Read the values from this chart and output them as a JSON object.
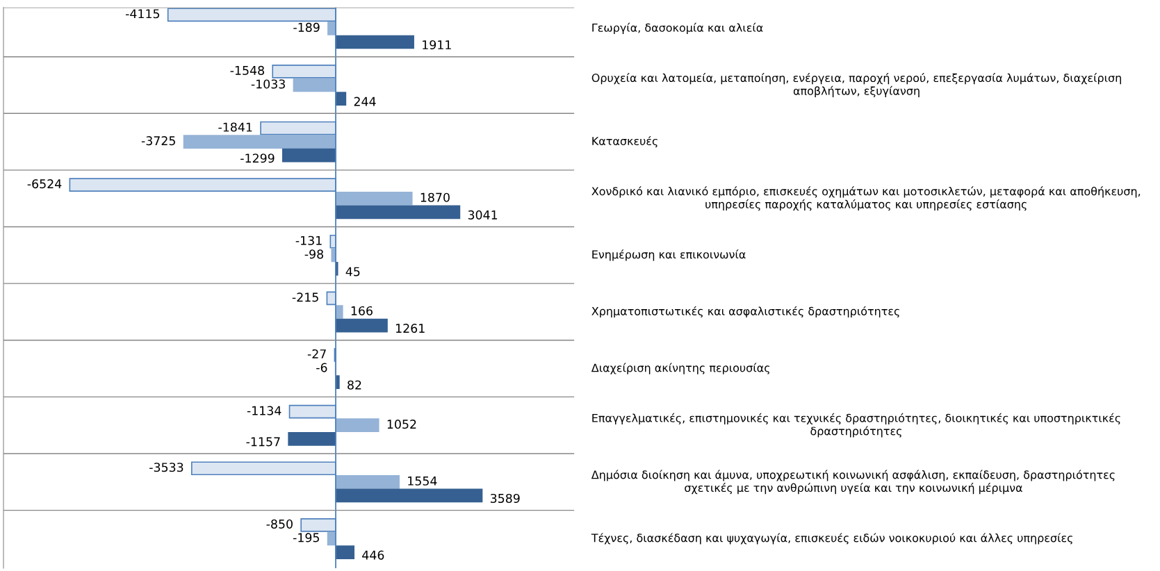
{
  "chart_data": {
    "type": "bar",
    "orientation": "horizontal",
    "data_labels": true,
    "grid": "y",
    "tick_labels": "y",
    "ref_lines": [
      {
        "axis": "x",
        "value": 0,
        "color": "#4f81bd"
      }
    ],
    "xlim": [
      -8150,
      5850
    ],
    "categories": [
      "Γεωργία, δασοκομία και αλιεία",
      "Ορυχεία και λατομεία, μεταποίηση, ενέργεια, παροχή νερού, επεξεργασία λυμάτων, διαχείριση αποβλήτων, εξυγίανση",
      "Κατασκευές",
      "Χονδρικό και λιανικό εμπόριο, επισκευές οχημάτων και μοτοσικλετών, μεταφορά και αποθήκευση, υπηρεσίες παροχής καταλύματος και υπηρεσίες εστίασης",
      "Ενημέρωση και επικοινωνία",
      "Χρηματοπιστωτικές και ασφαλιστικές δραστηριότητες",
      "Διαχείριση ακίνητης περιουσίας",
      "Επαγγελματικές, επιστημονικές και τεχνικές δραστηριότητες, διοικητικές και υποστηρικτικές δραστηριότητες",
      "Δημόσια διοίκηση και άμυνα, υποχρεωτική κοινωνική ασφάλιση, εκπαίδευση, δραστηριότητες σχετικές με την ανθρώπινη υγεία και την κοινωνική μέριμνα",
      "Τέχνες, διασκέδαση και ψυχαγωγία, επισκευές ειδών νοικοκυριού και άλλες υπηρεσίες"
    ],
    "series": [
      {
        "color": "#dce6f2",
        "values": [
          -4115,
          -1548,
          -1841,
          -6524,
          -131,
          -215,
          -27,
          -1134,
          -3533,
          -850
        ]
      },
      {
        "color": "#95b3d7",
        "values": [
          -189,
          -1033,
          -3725,
          1870,
          -98,
          166,
          -6,
          1052,
          1554,
          -195
        ]
      },
      {
        "color": "#366092",
        "values": [
          1911,
          244,
          -1299,
          3041,
          45,
          1261,
          82,
          -1157,
          3589,
          446
        ]
      }
    ]
  }
}
